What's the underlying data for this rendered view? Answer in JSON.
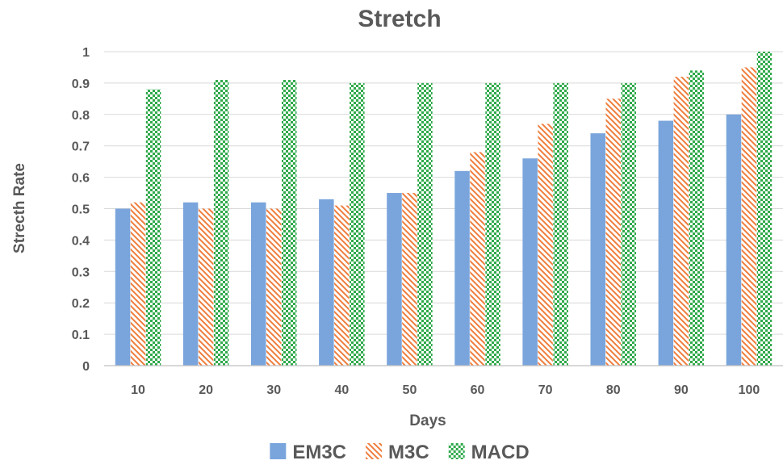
{
  "chart_data": {
    "type": "bar",
    "title": "Stretch",
    "xlabel": "Days",
    "ylabel": "Strecth Rate",
    "categories": [
      "10",
      "20",
      "30",
      "40",
      "50",
      "60",
      "70",
      "80",
      "90",
      "100"
    ],
    "ylim": [
      0,
      1
    ],
    "yticks": [
      "0",
      "0.1",
      "0.2",
      "0.3",
      "0.4",
      "0.5",
      "0.6",
      "0.7",
      "0.8",
      "0.9",
      "1"
    ],
    "grid": true,
    "legend_position": "bottom",
    "series": [
      {
        "name": "EM3C",
        "color": "#7aa5dc",
        "pattern": "solid",
        "values": [
          0.5,
          0.52,
          0.52,
          0.53,
          0.55,
          0.62,
          0.66,
          0.74,
          0.78,
          0.8
        ]
      },
      {
        "name": "M3C",
        "color": "#ef7d3c",
        "pattern": "diagonal-hatch",
        "values": [
          0.52,
          0.5,
          0.5,
          0.51,
          0.55,
          0.68,
          0.77,
          0.85,
          0.92,
          0.95
        ]
      },
      {
        "name": "MACD",
        "color": "#2fa94a",
        "pattern": "checker",
        "values": [
          0.88,
          0.91,
          0.91,
          0.9,
          0.9,
          0.9,
          0.9,
          0.9,
          0.94,
          1.0
        ]
      }
    ]
  }
}
